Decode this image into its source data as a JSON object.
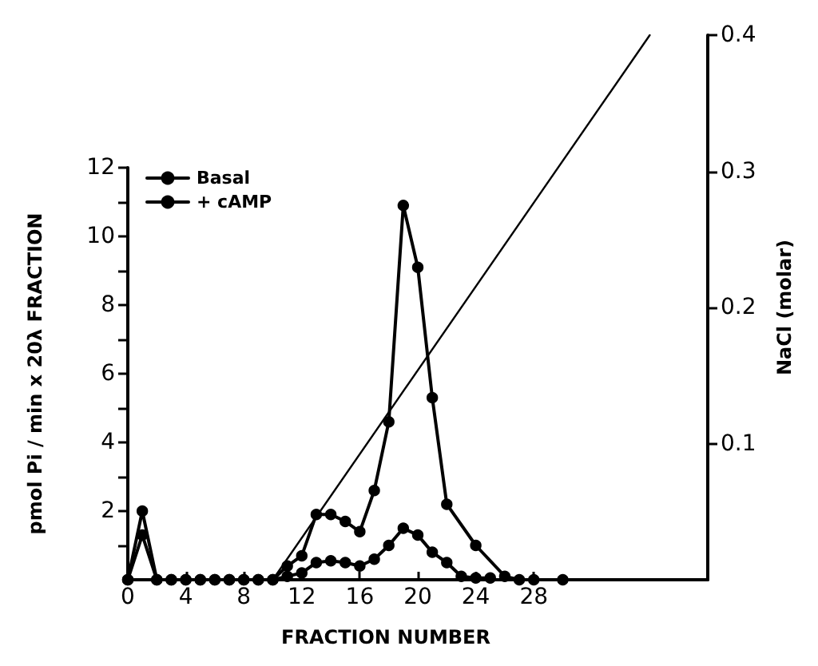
{
  "chart_data": {
    "type": "line",
    "xlabel": "FRACTION NUMBER",
    "ylabel": "pmol Pi / min x 20λ FRACTION",
    "y2label": "NaCl (molar)",
    "xlim": [
      0,
      40
    ],
    "xticks": [
      0,
      4,
      8,
      12,
      16,
      20,
      24,
      28
    ],
    "ylim": [
      0,
      12
    ],
    "yticks": [
      {
        "value": 1,
        "label": null
      },
      2,
      {
        "value": 3,
        "label": null
      },
      4,
      {
        "value": 5,
        "label": null
      },
      6,
      {
        "value": 7,
        "label": null
      },
      8,
      {
        "value": 9,
        "label": null
      },
      10,
      {
        "value": 11,
        "label": null
      },
      12
    ],
    "y2lim": [
      0,
      0.4
    ],
    "y2ticks": [
      0.1,
      0.2,
      0.3,
      0.4
    ],
    "legend": "top left",
    "marker": "circle",
    "grid": false,
    "series": [
      {
        "name": "Basal",
        "color": "#000000",
        "x": [
          0,
          1,
          2,
          3,
          4,
          5,
          6,
          7,
          8,
          9,
          10,
          11,
          12,
          13,
          14,
          15,
          16,
          17,
          18,
          19,
          20,
          21,
          22,
          23,
          24,
          25
        ],
        "values": [
          0,
          2.0,
          0,
          0,
          0,
          0,
          0,
          0,
          0,
          0,
          0,
          0.1,
          0.2,
          0.5,
          0.55,
          0.5,
          0.4,
          0.6,
          1.0,
          1.5,
          1.3,
          0.8,
          0.5,
          0.1,
          0.05,
          0.05
        ]
      },
      {
        "name": "+ cAMP",
        "color": "#000000",
        "x": [
          0,
          1,
          2,
          3,
          4,
          5,
          6,
          7,
          8,
          9,
          10,
          11,
          12,
          13,
          14,
          15,
          16,
          17,
          18,
          19,
          20,
          21,
          22,
          24,
          26,
          27,
          28,
          30
        ],
        "values": [
          0,
          1.3,
          0,
          0,
          0,
          0,
          0,
          0,
          0,
          0,
          0,
          0.4,
          0.7,
          1.9,
          1.9,
          1.7,
          1.4,
          2.6,
          4.6,
          10.9,
          9.1,
          5.3,
          2.2,
          1.0,
          0.1,
          0,
          0,
          0
        ]
      },
      {
        "type": "line",
        "axis": "y2",
        "color": "#000000",
        "marker": "none",
        "x": [
          10,
          36
        ],
        "values": [
          0,
          0.4
        ]
      }
    ]
  }
}
